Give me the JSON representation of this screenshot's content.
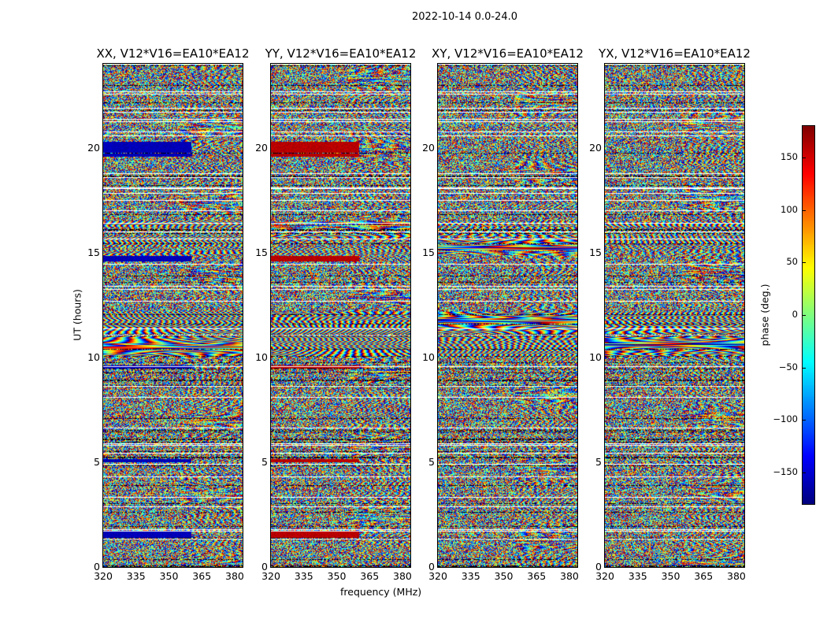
{
  "chart_data": {
    "type": "heatmap",
    "title": "2022-10-14 0.0-24.0",
    "xlabel": "frequency (MHz)",
    "ylabel": "UT (hours)",
    "xlim": [
      320,
      383.6
    ],
    "ylim": [
      0,
      24
    ],
    "xticks": [
      "320",
      "335",
      "350",
      "365",
      "380"
    ],
    "xtick_values": [
      320,
      335,
      350,
      365,
      380
    ],
    "yticks": [
      "0",
      "5",
      "10",
      "15",
      "20"
    ],
    "ytick_values": [
      0,
      5,
      10,
      15,
      20
    ],
    "panels": [
      {
        "title": "XX, V12*V16=EA10*EA12",
        "strong_phase": -160
      },
      {
        "title": "YY, V12*V16=EA10*EA12",
        "strong_phase": 160
      },
      {
        "title": "XY, V12*V16=EA10*EA12",
        "strong_phase": null
      },
      {
        "title": "YX, V12*V16=EA10*EA12",
        "strong_phase": null
      }
    ],
    "colorbar": {
      "label": "phase (deg.)",
      "colormap": "jet",
      "range": [
        -180,
        180
      ],
      "ticks": [
        "150",
        "100",
        "50",
        "0",
        "−50",
        "−100",
        "−150"
      ],
      "tick_values": [
        150,
        100,
        50,
        0,
        -50,
        -100,
        -150
      ]
    }
  }
}
